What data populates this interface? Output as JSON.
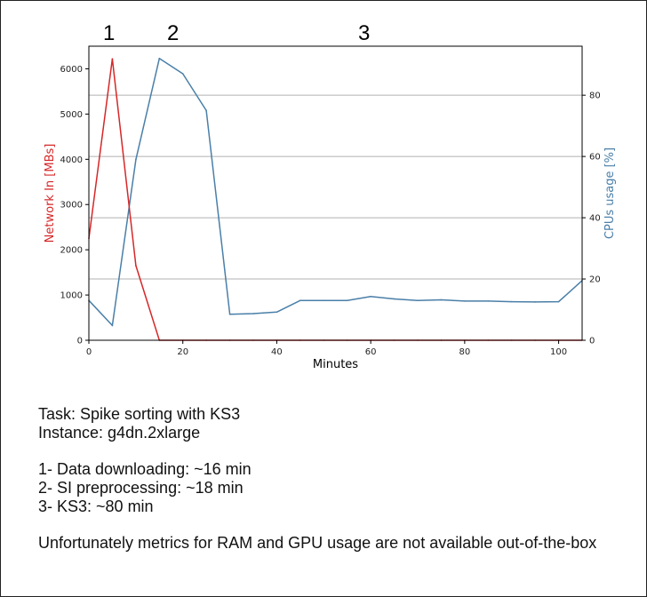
{
  "chart_data": {
    "type": "line",
    "xlabel": "Minutes",
    "ylabel_left": "Network In [MBs]",
    "ylabel_right": "CPUs usage [%]",
    "xlim": [
      0,
      105
    ],
    "ylim_left": [
      0,
      6500
    ],
    "ylim_right": [
      0,
      96
    ],
    "x_ticks": [
      0,
      20,
      40,
      60,
      80,
      100
    ],
    "y_left_ticks": [
      0,
      1000,
      2000,
      3000,
      4000,
      5000,
      6000
    ],
    "y_right_ticks": [
      0,
      20,
      40,
      60,
      80
    ],
    "grid": "horizontal lines at right-axis ticks",
    "colors": {
      "network": "#d62728",
      "cpu": "#4a7fa8"
    },
    "series": [
      {
        "name": "Network In [MBs]",
        "axis": "left",
        "x": [
          0,
          5,
          10,
          15,
          20,
          25,
          30,
          35,
          40,
          45,
          50,
          55,
          60,
          65,
          70,
          75,
          80,
          85,
          90,
          95,
          100,
          105
        ],
        "values": [
          2250,
          6220,
          1650,
          0,
          0,
          0,
          0,
          0,
          0,
          0,
          0,
          0,
          0,
          0,
          0,
          0,
          0,
          0,
          0,
          0,
          0,
          0
        ]
      },
      {
        "name": "CPUs usage [%]",
        "axis": "right",
        "x": [
          0,
          5,
          10,
          15,
          20,
          25,
          30,
          35,
          40,
          45,
          50,
          55,
          60,
          65,
          70,
          75,
          80,
          85,
          90,
          95,
          100,
          105
        ],
        "values": [
          13,
          4.8,
          59,
          92,
          87,
          75,
          8.5,
          8.7,
          9.2,
          13,
          13,
          13,
          14.3,
          13.5,
          13,
          13.2,
          12.8,
          12.8,
          12.6,
          12.5,
          12.6,
          19.5
        ]
      }
    ]
  },
  "phase_labels": [
    "1",
    "2",
    "3"
  ],
  "notes": {
    "task": "Task: Spike sorting with KS3",
    "instance": "Instance: g4dn.2xlarge",
    "phase1": "1- Data downloading: ~16 min",
    "phase2": "2- SI preprocessing: ~18 min",
    "phase3": "3- KS3: ~80 min",
    "footnote": "Unfortunately metrics for RAM and GPU usage are not available out-of-the-box"
  }
}
